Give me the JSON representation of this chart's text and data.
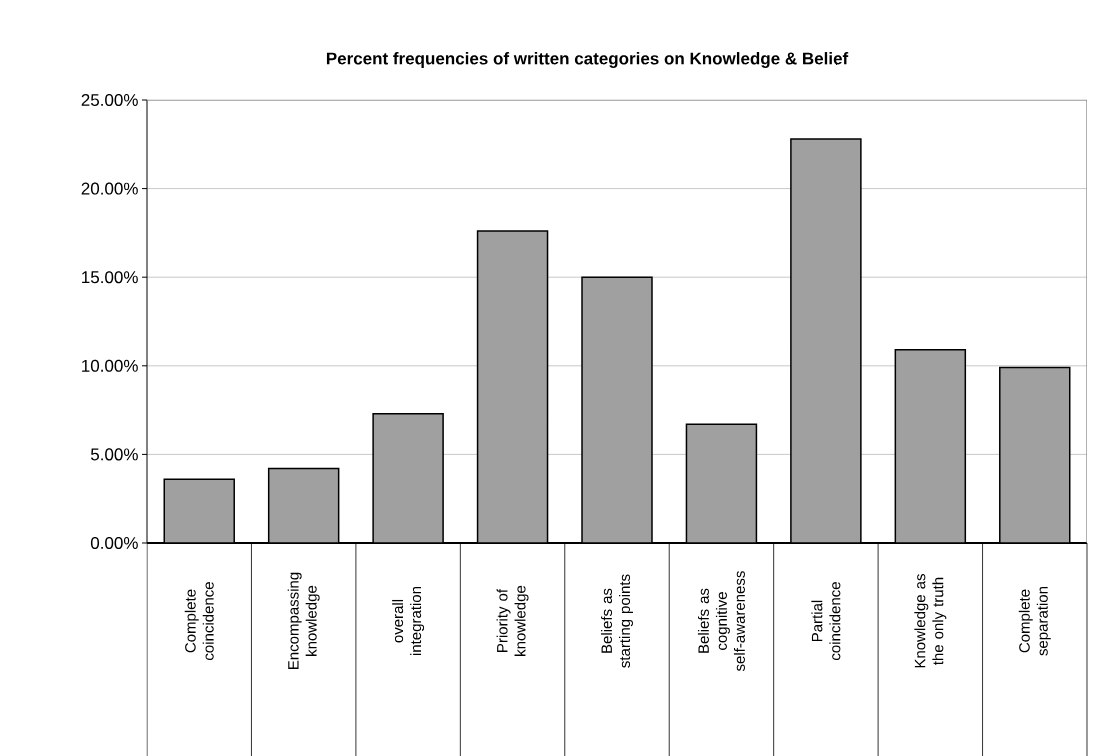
{
  "chart_data": {
    "type": "bar",
    "title": "Percent frequencies of written categories on Knowledge & Belief",
    "categories": [
      "Complete coincidence",
      "Encompassing knowledge",
      "overall integration",
      "Priority of knowledge",
      "Beliefs as starting points",
      "Beliefs as cognitive self-awareness",
      "Partial coincidence",
      "Knowledge as the only truth",
      "Complete separation"
    ],
    "values": [
      3.6,
      4.2,
      7.3,
      17.6,
      15.0,
      6.7,
      22.8,
      10.9,
      9.9
    ],
    "color": "#a0a0a0",
    "ylim": [
      0,
      25
    ],
    "yticks": [
      {
        "value": 0,
        "label": "0.00%"
      },
      {
        "value": 5,
        "label": "5.00%"
      },
      {
        "value": 10,
        "label": "10.00%"
      },
      {
        "value": 15,
        "label": "15.00%"
      },
      {
        "value": 20,
        "label": "20.00%"
      },
      {
        "value": 25,
        "label": "25.00%"
      }
    ],
    "grid": "y"
  }
}
